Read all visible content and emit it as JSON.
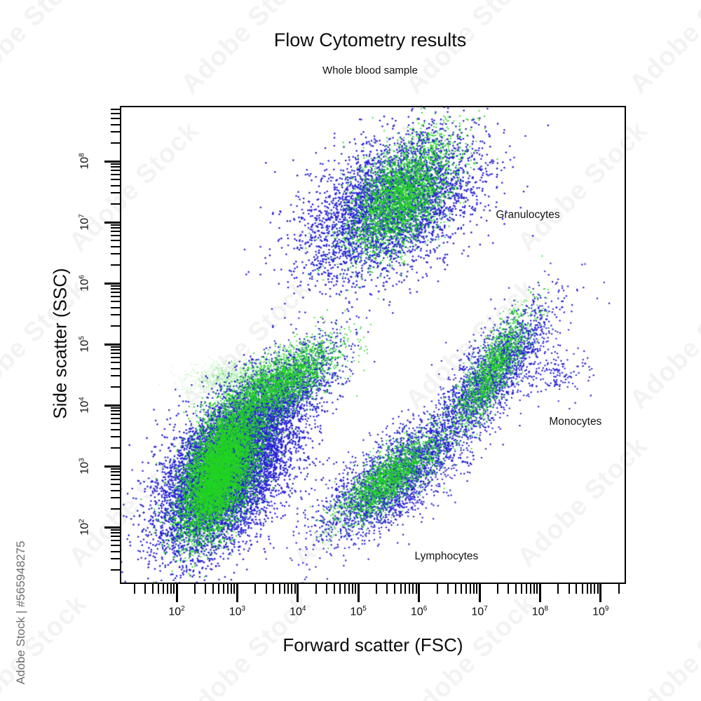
{
  "watermark": {
    "tile_text": "Adobe Stock",
    "id_text": "Adobe Stock | #565948275"
  },
  "chart_data": {
    "type": "scatter",
    "title": "Flow Cytometry results",
    "subtitle": "Whole blood sample",
    "xlabel": "Forward scatter (FSC)",
    "ylabel": "Side scatter (SSC)",
    "x_scale": "log",
    "y_scale": "log",
    "x_tick_exponents": [
      2,
      3,
      4,
      5,
      6,
      7,
      8,
      9
    ],
    "y_tick_exponents": [
      2,
      3,
      4,
      5,
      6,
      7,
      8
    ],
    "x_range_log10": [
      1.06,
      9.42
    ],
    "y_range_log10": [
      1.07,
      8.91
    ],
    "grid": false,
    "legend": "none",
    "colors": {
      "blue": "#2621d6",
      "green": "#22d422",
      "mist": "#90e890"
    },
    "annotations": [
      {
        "label": "Granulocytes",
        "x_log10": 7.27,
        "y_log10": 7.11
      },
      {
        "label": "Monocytes",
        "x_log10": 8.15,
        "y_log10": 3.72
      },
      {
        "label": "Lymphocytes",
        "x_log10": 5.93,
        "y_log10": 1.52
      }
    ],
    "seed": 42,
    "clusters": [
      {
        "name": "debris-mist-green",
        "color": "mist",
        "n": 1300,
        "cx": 3.05,
        "cy": 4.47,
        "sx": 0.45,
        "sy": 0.13,
        "rho": 0.25,
        "r": 0.7,
        "alpha": 0.8
      },
      {
        "name": "debris-blue",
        "color": "blue",
        "n": 8000,
        "cx": 2.8,
        "cy": 2.9,
        "sx": 0.55,
        "sy": 0.66,
        "rho": 0.5,
        "r": 1.3,
        "alpha": 1
      },
      {
        "name": "debris-arm-blue",
        "color": "blue",
        "n": 2400,
        "cx": 3.6,
        "cy": 4.05,
        "sx": 0.55,
        "sy": 0.5,
        "rho": 0.72,
        "r": 1.2,
        "alpha": 1
      },
      {
        "name": "granulocytes-blue",
        "color": "blue",
        "n": 4200,
        "cx": 5.55,
        "cy": 7.3,
        "sx": 0.72,
        "sy": 0.6,
        "rho": 0.45,
        "r": 1.3,
        "alpha": 1
      },
      {
        "name": "lymphocytes-blue",
        "color": "blue",
        "n": 2700,
        "cx": 5.6,
        "cy": 2.8,
        "sx": 0.6,
        "sy": 0.5,
        "rho": 0.72,
        "r": 1.2,
        "alpha": 1
      },
      {
        "name": "monocytes-blue",
        "color": "blue",
        "n": 2100,
        "cx": 7.2,
        "cy": 4.5,
        "sx": 0.5,
        "sy": 0.58,
        "rho": 0.8,
        "r": 1.2,
        "alpha": 1
      },
      {
        "name": "monocytes-tail-blue",
        "color": "blue",
        "n": 130,
        "cx": 8.32,
        "cy": 4.5,
        "sx": 0.27,
        "sy": 0.2,
        "rho": 0.2,
        "r": 1.2,
        "alpha": 1
      },
      {
        "name": "debris-green",
        "color": "green",
        "n": 7000,
        "cx": 2.72,
        "cy": 2.92,
        "sx": 0.32,
        "sy": 0.52,
        "rho": 0.55,
        "r": 1.1,
        "alpha": 1
      },
      {
        "name": "debris-arm-green",
        "color": "green",
        "n": 2400,
        "cx": 3.7,
        "cy": 4.35,
        "sx": 0.5,
        "sy": 0.36,
        "rho": 0.72,
        "r": 1.0,
        "alpha": 1
      },
      {
        "name": "granulocytes-green",
        "color": "green",
        "n": 2800,
        "cx": 5.72,
        "cy": 7.45,
        "sx": 0.44,
        "sy": 0.5,
        "rho": 0.55,
        "r": 1.1,
        "alpha": 1
      },
      {
        "name": "lymphocytes-green",
        "color": "green",
        "n": 1900,
        "cx": 5.5,
        "cy": 2.8,
        "sx": 0.42,
        "sy": 0.36,
        "rho": 0.78,
        "r": 1.0,
        "alpha": 1
      },
      {
        "name": "monocytes-green",
        "color": "green",
        "n": 1500,
        "cx": 7.2,
        "cy": 4.55,
        "sx": 0.33,
        "sy": 0.5,
        "rho": 0.82,
        "r": 1.0,
        "alpha": 1
      }
    ]
  }
}
